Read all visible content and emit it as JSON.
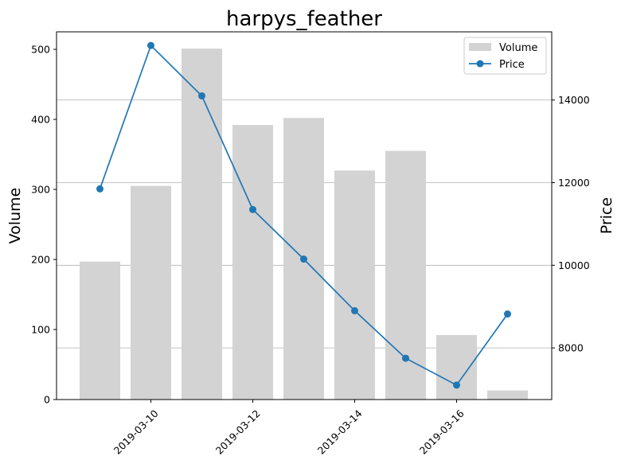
{
  "chart_data": {
    "type": "bar+line",
    "title": "harpys_feather",
    "x": [
      "2019-03-09",
      "2019-03-10",
      "2019-03-11",
      "2019-03-12",
      "2019-03-13",
      "2019-03-14",
      "2019-03-15",
      "2019-03-16",
      "2019-03-17"
    ],
    "x_tick_labels": [
      "2019-03-10",
      "2019-03-12",
      "2019-03-14",
      "2019-03-16"
    ],
    "y_left_label": "Volume",
    "y_right_label": "Price",
    "y_left_lim": [
      0,
      525
    ],
    "y_right_lim": [
      6750,
      15650
    ],
    "y_left_ticks": [
      0,
      100,
      200,
      300,
      400,
      500
    ],
    "y_right_ticks": [
      8000,
      10000,
      12000,
      14000
    ],
    "grid": "horizontal lines at right-axis ticks",
    "legend_placement": "upper right",
    "series": [
      {
        "name": "Volume",
        "type": "bar",
        "axis": "left",
        "color": "#d3d3d3",
        "values": [
          197,
          305,
          501,
          392,
          402,
          327,
          355,
          92,
          13
        ]
      },
      {
        "name": "Price",
        "type": "line",
        "axis": "right",
        "color": "#1f77b4",
        "marker": "circle",
        "values": [
          11850,
          15320,
          14100,
          11350,
          10150,
          8900,
          7750,
          7100,
          8820
        ]
      }
    ]
  }
}
